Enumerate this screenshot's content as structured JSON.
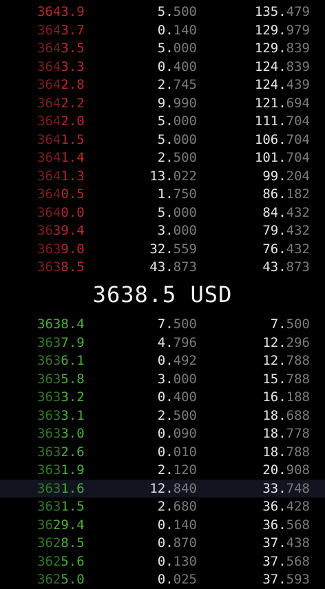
{
  "colors": {
    "ask": "#b52a2a",
    "ask_dim": "#7d1e1e",
    "bid": "#4caf39",
    "bid_dim": "#2f7a25",
    "value_bright": "#e6e6e6",
    "value_dim": "#7a7a7a"
  },
  "mid_price": "3638.5 USD",
  "asks": [
    {
      "price": "3643.9",
      "size": "5.500",
      "total": "135.479"
    },
    {
      "price": "3643.7",
      "size": "0.140",
      "total": "129.979"
    },
    {
      "price": "3643.5",
      "size": "5.000",
      "total": "129.839"
    },
    {
      "price": "3643.3",
      "size": "0.400",
      "total": "124.839"
    },
    {
      "price": "3642.8",
      "size": "2.745",
      "total": "124.439"
    },
    {
      "price": "3642.2",
      "size": "9.990",
      "total": "121.694"
    },
    {
      "price": "3642.0",
      "size": "5.000",
      "total": "111.704"
    },
    {
      "price": "3641.5",
      "size": "5.000",
      "total": "106.704"
    },
    {
      "price": "3641.4",
      "size": "2.500",
      "total": "101.704"
    },
    {
      "price": "3641.3",
      "size": "13.022",
      "total": "99.204"
    },
    {
      "price": "3640.5",
      "size": "1.750",
      "total": "86.182"
    },
    {
      "price": "3640.0",
      "size": "5.000",
      "total": "84.432"
    },
    {
      "price": "3639.4",
      "size": "3.000",
      "total": "79.432"
    },
    {
      "price": "3639.0",
      "size": "32.559",
      "total": "76.432"
    },
    {
      "price": "3638.5",
      "size": "43.873",
      "total": "43.873"
    }
  ],
  "bids": [
    {
      "price": "3638.4",
      "size": "7.500",
      "total": "7.500"
    },
    {
      "price": "3637.9",
      "size": "4.796",
      "total": "12.296"
    },
    {
      "price": "3636.1",
      "size": "0.492",
      "total": "12.788"
    },
    {
      "price": "3635.8",
      "size": "3.000",
      "total": "15.788"
    },
    {
      "price": "3633.2",
      "size": "0.400",
      "total": "16.188"
    },
    {
      "price": "3633.1",
      "size": "2.500",
      "total": "18.688"
    },
    {
      "price": "3633.0",
      "size": "0.090",
      "total": "18.778"
    },
    {
      "price": "3632.6",
      "size": "0.010",
      "total": "18.788"
    },
    {
      "price": "3631.9",
      "size": "2.120",
      "total": "20.908"
    },
    {
      "price": "3631.6",
      "size": "12.840",
      "total": "33.748"
    },
    {
      "price": "3631.5",
      "size": "2.680",
      "total": "36.428"
    },
    {
      "price": "3629.4",
      "size": "0.140",
      "total": "36.568"
    },
    {
      "price": "3628.5",
      "size": "0.870",
      "total": "37.438"
    },
    {
      "price": "3625.6",
      "size": "0.130",
      "total": "37.568"
    },
    {
      "price": "3625.0",
      "size": "0.025",
      "total": "37.593"
    }
  ],
  "highlighted_bid_index": 9
}
